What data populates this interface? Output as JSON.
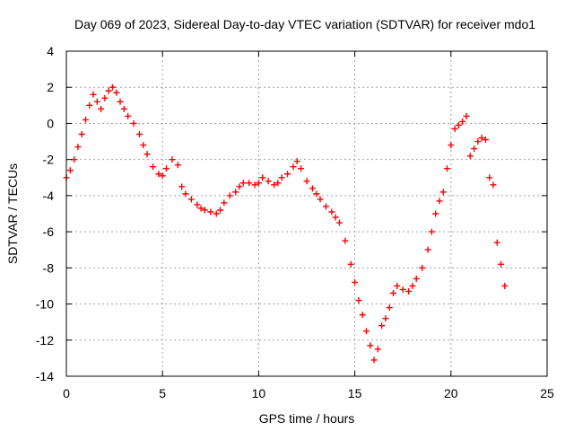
{
  "chart_data": {
    "type": "scatter",
    "title": "Day 069 of 2023, Sidereal Day-to-day VTEC variation (SDTVAR) for receiver mdo1",
    "xlabel": "GPS time / hours",
    "ylabel": "SDTVAR / TECUs",
    "xlim": [
      0,
      25
    ],
    "ylim": [
      -14,
      4
    ],
    "xticks": [
      "0",
      "5",
      "10",
      "15",
      "20",
      "25"
    ],
    "yticks": [
      "4",
      "2",
      "0",
      "-2",
      "-4",
      "-6",
      "-8",
      "-10",
      "-12",
      "-14"
    ],
    "grid": true,
    "marker": "+",
    "color": "#ff0000",
    "series": [
      {
        "name": "SDTVAR",
        "x": [
          0.0,
          0.2,
          0.4,
          0.6,
          0.8,
          1.0,
          1.2,
          1.4,
          1.6,
          1.8,
          2.0,
          2.2,
          2.4,
          2.6,
          2.8,
          3.0,
          3.2,
          3.5,
          3.8,
          4.0,
          4.2,
          4.5,
          4.8,
          5.0,
          5.2,
          5.5,
          5.8,
          6.0,
          6.2,
          6.5,
          6.8,
          7.0,
          7.2,
          7.5,
          7.8,
          8.0,
          8.2,
          8.5,
          8.8,
          9.0,
          9.2,
          9.5,
          9.8,
          10.0,
          10.2,
          10.5,
          10.8,
          11.0,
          11.2,
          11.5,
          11.8,
          12.0,
          12.2,
          12.5,
          12.8,
          13.0,
          13.2,
          13.5,
          13.8,
          14.0,
          14.2,
          14.5,
          14.8,
          15.0,
          15.2,
          15.4,
          15.6,
          15.8,
          16.0,
          16.2,
          16.4,
          16.6,
          16.8,
          17.0,
          17.2,
          17.5,
          17.8,
          18.0,
          18.2,
          18.5,
          18.8,
          19.0,
          19.2,
          19.4,
          19.6,
          19.8,
          20.0,
          20.2,
          20.4,
          20.6,
          20.8,
          21.0,
          21.2,
          21.4,
          21.6,
          21.8,
          22.0,
          22.2,
          22.4,
          22.6,
          22.8
        ],
        "y": [
          -3.0,
          -2.6,
          -2.0,
          -1.3,
          -0.6,
          0.2,
          1.0,
          1.6,
          1.2,
          0.8,
          1.4,
          1.8,
          2.0,
          1.7,
          1.2,
          0.8,
          0.4,
          0.0,
          -0.6,
          -1.2,
          -1.7,
          -2.4,
          -2.8,
          -2.9,
          -2.5,
          -2.0,
          -2.3,
          -3.5,
          -3.9,
          -4.2,
          -4.5,
          -4.7,
          -4.8,
          -4.9,
          -5.0,
          -4.8,
          -4.4,
          -4.0,
          -3.8,
          -3.5,
          -3.3,
          -3.3,
          -3.4,
          -3.3,
          -3.0,
          -3.2,
          -3.4,
          -3.3,
          -3.0,
          -2.8,
          -2.4,
          -2.1,
          -2.5,
          -3.2,
          -3.6,
          -3.9,
          -4.2,
          -4.6,
          -4.9,
          -5.2,
          -5.5,
          -6.5,
          -7.8,
          -8.8,
          -9.8,
          -10.6,
          -11.5,
          -12.3,
          -13.1,
          -12.5,
          -11.2,
          -10.8,
          -10.2,
          -9.4,
          -9.0,
          -9.2,
          -9.3,
          -9.0,
          -8.6,
          -8.0,
          -7.0,
          -6.0,
          -5.0,
          -4.3,
          -3.8,
          -2.5,
          -1.2,
          -0.3,
          -0.1,
          0.1,
          0.4,
          -1.8,
          -1.4,
          -1.0,
          -0.8,
          -0.9,
          -3.0,
          -3.4,
          -6.6,
          -7.8,
          -9.0
        ]
      }
    ]
  }
}
